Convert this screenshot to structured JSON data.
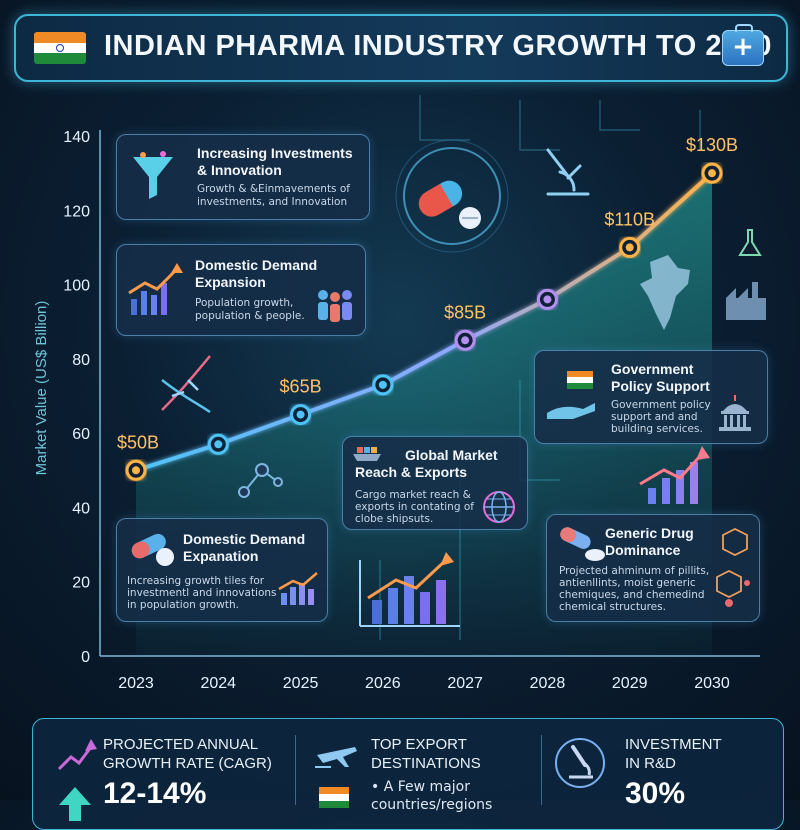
{
  "header": {
    "title": "INDIAN PHARMA INDUSTRY GROWTH TO 2030",
    "kit_symbol": "+"
  },
  "chart_data": {
    "type": "line",
    "title": "INDIAN PHARMA INDUSTRY GROWTH TO 2030",
    "ylabel": "Market Value (US$ Billion)",
    "xlabel": "",
    "ylim": [
      0,
      140
    ],
    "yticks": [
      0,
      20,
      40,
      60,
      80,
      100,
      120,
      140
    ],
    "x": [
      "2023",
      "2024",
      "2025",
      "2026",
      "2027",
      "2028",
      "2029",
      "2030"
    ],
    "values": [
      50,
      57,
      65,
      73,
      85,
      96,
      110,
      130
    ],
    "point_labels": [
      "$50B",
      "",
      "$65B",
      "",
      "$85B",
      "",
      "$110B",
      "$130B"
    ],
    "grid": false
  },
  "cards": {
    "investments": {
      "title_1": "Increasing Investments",
      "title_2": "& Innovation",
      "body_1": "Growth & &Einmavements of",
      "body_2": "investments, and Innovation"
    },
    "domestic_demand": {
      "title_1": "Domestic Demand",
      "title_2": "Expansion",
      "body_1": "Population growth,",
      "body_2": "population & people."
    },
    "government": {
      "title_1": "Government",
      "title_2": "Policy Support",
      "body_1": "Government policy",
      "body_2": "support and and",
      "body_3": "building services."
    },
    "global_market": {
      "title_1": "Global Market",
      "title_2": "Reach & Exports",
      "body_1": "Cargo market reach &",
      "body_2": "exports in contating of",
      "body_3": "clobe shipsuts."
    },
    "domestic_expansion": {
      "title_1": "Domestic Demand",
      "title_2": "Expanation",
      "body_1": "Increasing growth tiles for",
      "body_2": "investmentl and innovations",
      "body_3": "in population growth."
    },
    "generic_drug": {
      "title_1": "Generic Drug",
      "title_2": "Dominance",
      "body_1": "Projected ahminum of pillits,",
      "body_2": "antienllints, moist generic",
      "body_3": "chemiques, and chemedind",
      "body_4": "chemical structures."
    }
  },
  "bottom": {
    "cagr": {
      "title_1": "PROJECTED ANNUAL",
      "title_2": "GROWTH RATE (CAGR)",
      "value": "12-14%"
    },
    "exports": {
      "title_1": "TOP EXPORT",
      "title_2": "DESTINATIONS",
      "body_1": "• A Few major",
      "body_2": "countries/regions"
    },
    "rnd": {
      "title_1": "INVESTMENT",
      "title_2": "IN R&D",
      "value": "30%"
    }
  },
  "colors": {
    "line_start": "#4fc3f7",
    "line_end": "#ffb347",
    "accent": "#3fb6d8",
    "label": "#ffc266"
  }
}
